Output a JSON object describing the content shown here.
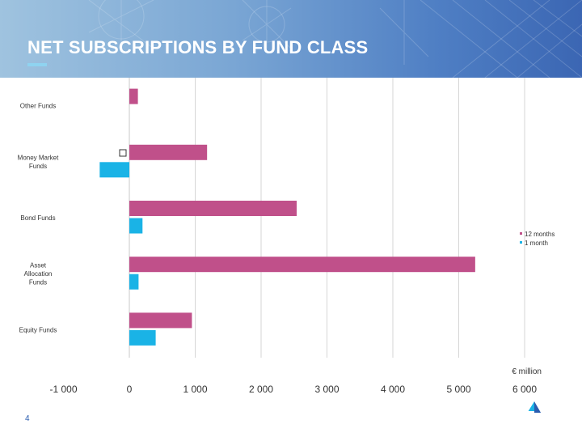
{
  "page": {
    "title": "NET SUBSCRIPTIONS BY FUND CLASS",
    "page_number": "4"
  },
  "colors": {
    "header_start": "#9fc3df",
    "header_end": "#3b66b3",
    "series_12_months": "#c0508a",
    "series_1_month": "#1ab3e6",
    "title_underline": "#8fd3f0"
  },
  "chart_data": {
    "type": "bar",
    "orientation": "horizontal",
    "categories": [
      {
        "id": "other",
        "lines": [
          "Other Funds"
        ]
      },
      {
        "id": "money-market",
        "lines": [
          "Money Market",
          "Funds"
        ]
      },
      {
        "id": "bond",
        "lines": [
          "Bond Funds"
        ]
      },
      {
        "id": "asset-allocation",
        "lines": [
          "Asset",
          "Allocation",
          "Funds"
        ]
      },
      {
        "id": "equity",
        "lines": [
          "Equity Funds"
        ]
      }
    ],
    "series": [
      {
        "name": "12 months",
        "color": "#c0508a",
        "values": [
          130,
          1180,
          2540,
          5250,
          950
        ]
      },
      {
        "name": "1 month",
        "color": "#1ab3e6",
        "values": [
          0,
          -450,
          200,
          140,
          400
        ]
      }
    ],
    "xlim": [
      -1000,
      6000
    ],
    "ticks": [
      {
        "value": -1000,
        "label": "-1 000"
      },
      {
        "value": 0,
        "label": "0"
      },
      {
        "value": 1000,
        "label": "1 000"
      },
      {
        "value": 2000,
        "label": "2 000"
      },
      {
        "value": 3000,
        "label": "3 000"
      },
      {
        "value": 4000,
        "label": "4 000"
      },
      {
        "value": 5000,
        "label": "5 000"
      },
      {
        "value": 6000,
        "label": "6 000"
      }
    ],
    "unit_label": "€ million",
    "grid": true,
    "legend_position": "right"
  }
}
